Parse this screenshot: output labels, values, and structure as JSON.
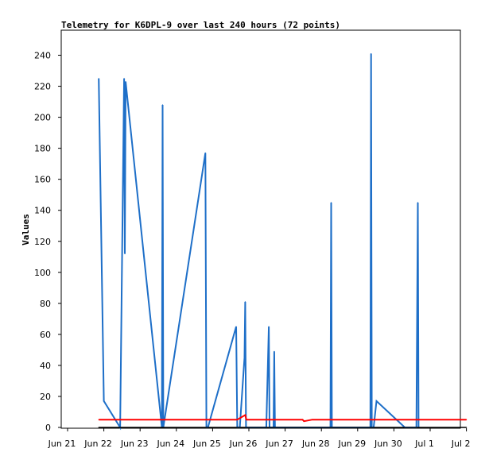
{
  "chart_data": {
    "type": "line",
    "title": "Telemetry for K6DPL-9 over last 240 hours (72 points)",
    "ylabel": "Values",
    "xlabel": "",
    "ylim": [
      0,
      255
    ],
    "yticks": [
      0,
      20,
      40,
      60,
      80,
      100,
      120,
      140,
      160,
      180,
      200,
      220,
      240
    ],
    "xticks": [
      "Jun 21",
      "Jun 22",
      "Jun 23",
      "Jun 24",
      "Jun 25",
      "Jun 26",
      "Jun 27",
      "Jun 28",
      "Jun 29",
      "Jun 30",
      "Jul 1",
      "Jul 2"
    ],
    "x_day_range": [
      21,
      32
    ],
    "grid": false,
    "series": [
      {
        "color": "#1e6fc8",
        "points": [
          [
            21.86,
            225
          ],
          [
            22.0,
            17
          ],
          [
            22.45,
            0
          ],
          [
            22.56,
            225
          ],
          [
            22.58,
            112
          ],
          [
            22.6,
            223
          ],
          [
            23.6,
            0
          ],
          [
            23.62,
            208
          ],
          [
            23.64,
            0
          ],
          [
            24.8,
            177
          ],
          [
            24.83,
            0
          ],
          [
            24.87,
            0
          ],
          [
            25.65,
            65
          ],
          [
            25.68,
            0
          ],
          [
            25.75,
            0
          ],
          [
            25.88,
            45
          ],
          [
            25.9,
            81
          ],
          [
            25.92,
            0
          ],
          [
            26.48,
            0
          ],
          [
            26.55,
            65
          ],
          [
            26.57,
            0
          ],
          [
            26.68,
            0
          ],
          [
            26.7,
            49
          ],
          [
            26.72,
            0
          ],
          [
            28.25,
            0
          ],
          [
            28.27,
            145
          ],
          [
            28.29,
            0
          ],
          [
            29.35,
            0
          ],
          [
            29.37,
            241
          ],
          [
            29.39,
            0
          ],
          [
            29.44,
            0
          ],
          [
            29.52,
            17
          ],
          [
            30.3,
            0
          ],
          [
            30.62,
            0
          ],
          [
            30.66,
            145
          ],
          [
            30.68,
            0
          ]
        ]
      },
      {
        "color": "#ff0000",
        "points": [
          [
            21.86,
            5
          ],
          [
            25.68,
            5
          ],
          [
            25.9,
            8
          ],
          [
            25.93,
            5
          ],
          [
            26.8,
            5
          ],
          [
            27.48,
            5
          ],
          [
            27.52,
            4
          ],
          [
            27.75,
            5
          ],
          [
            32.0,
            5
          ]
        ]
      },
      {
        "color": "#000000",
        "points": [
          [
            21.86,
            0
          ],
          [
            32.0,
            0
          ]
        ]
      }
    ]
  }
}
